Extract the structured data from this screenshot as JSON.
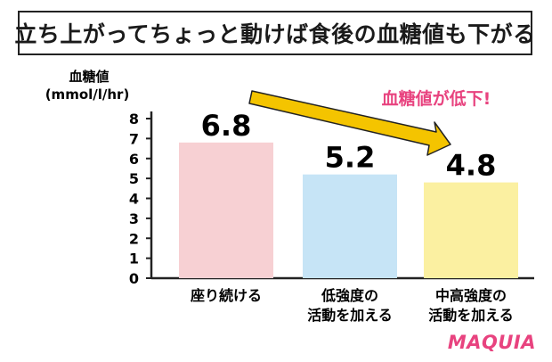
{
  "header": {
    "title": "立ち上がってちょっと動けば食後の血糖値も下がる"
  },
  "brand": {
    "name": "MAQUIA"
  },
  "annotation": {
    "text": "血糖値が低下!",
    "color": "#e8437f",
    "arrow_color": "#f4c400"
  },
  "chart_data": {
    "type": "bar",
    "ylabel_line1": "血糖値",
    "ylabel_line2": "(mmol/l/hr)",
    "ylim": [
      0,
      8
    ],
    "yticks": [
      "0",
      "1",
      "2",
      "3",
      "4",
      "5",
      "6",
      "7",
      "8"
    ],
    "categories": [
      [
        "座り続ける"
      ],
      [
        "低強度の",
        "活動を加える"
      ],
      [
        "中高強度の",
        "活動を加える"
      ]
    ],
    "values": [
      6.8,
      5.2,
      4.8
    ],
    "value_labels": [
      "6.8",
      "5.2",
      "4.8"
    ],
    "colors": [
      "#f7d0d3",
      "#c6e4f6",
      "#fbf0a1"
    ],
    "grid": false
  }
}
